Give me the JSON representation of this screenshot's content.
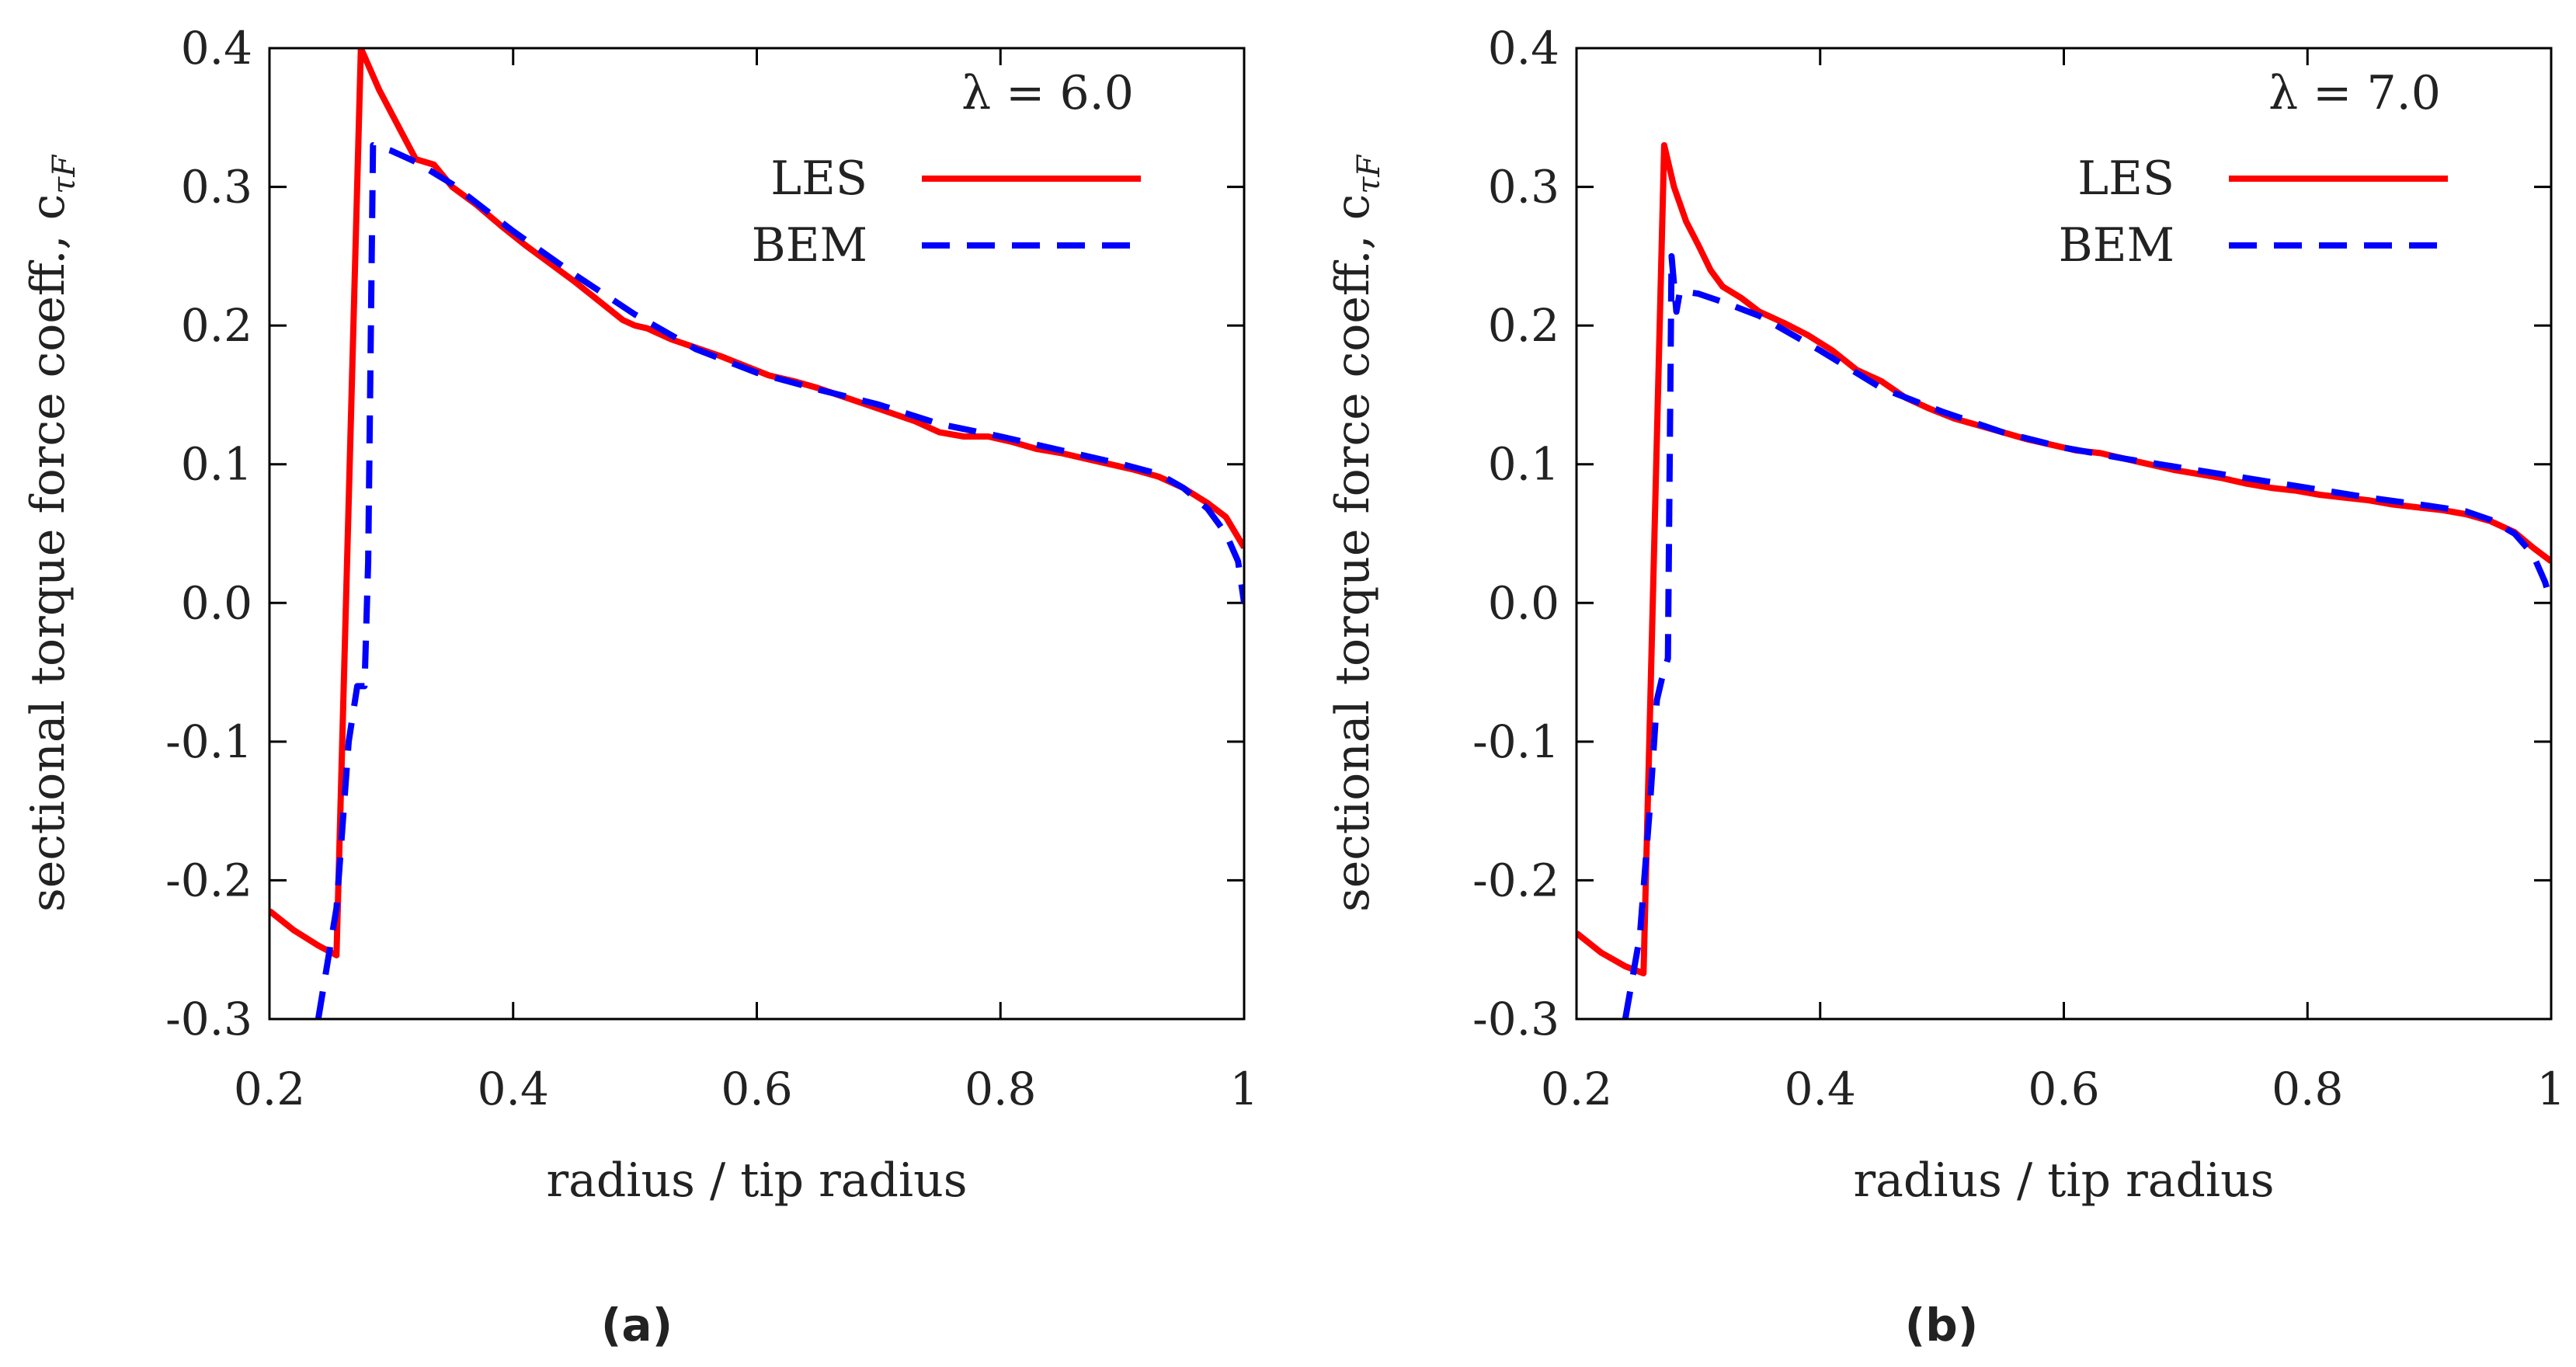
{
  "chart_data": [
    {
      "type": "line",
      "caption": "(a)",
      "annotation": "λ = 6.0",
      "xlabel": "radius / tip radius",
      "ylabel": "sectional torque force coeff., c",
      "ylabel_sub": "τF",
      "xlim": [
        0.2,
        1.0
      ],
      "ylim": [
        -0.3,
        0.4
      ],
      "xticks": [
        "0.2",
        "0.4",
        "0.6",
        "0.8",
        "1"
      ],
      "yticks": [
        "-0.3",
        "-0.2",
        "-0.1",
        "0.0",
        "0.1",
        "0.2",
        "0.3",
        "0.4"
      ],
      "legend_position": "top-right",
      "series": [
        {
          "name": "LES",
          "color": "#ff0000",
          "style": "solid",
          "x": [
            0.2,
            0.22,
            0.24,
            0.255,
            0.275,
            0.29,
            0.305,
            0.32,
            0.335,
            0.35,
            0.37,
            0.39,
            0.41,
            0.43,
            0.45,
            0.47,
            0.49,
            0.5,
            0.51,
            0.53,
            0.55,
            0.57,
            0.59,
            0.61,
            0.63,
            0.65,
            0.67,
            0.69,
            0.71,
            0.73,
            0.75,
            0.77,
            0.79,
            0.81,
            0.83,
            0.85,
            0.87,
            0.89,
            0.91,
            0.93,
            0.95,
            0.97,
            0.985,
            1.0
          ],
          "y": [
            -0.222,
            -0.236,
            -0.247,
            -0.254,
            0.4,
            0.37,
            0.345,
            0.32,
            0.316,
            0.3,
            0.287,
            0.272,
            0.258,
            0.245,
            0.232,
            0.218,
            0.204,
            0.2,
            0.198,
            0.19,
            0.184,
            0.178,
            0.171,
            0.164,
            0.16,
            0.155,
            0.149,
            0.143,
            0.137,
            0.131,
            0.123,
            0.12,
            0.12,
            0.116,
            0.111,
            0.108,
            0.104,
            0.1,
            0.096,
            0.091,
            0.083,
            0.072,
            0.062,
            0.04
          ]
        },
        {
          "name": "BEM",
          "color": "#0000ff",
          "style": "dashed",
          "x": [
            0.24,
            0.255,
            0.265,
            0.272,
            0.278,
            0.281,
            0.285,
            0.3,
            0.32,
            0.35,
            0.4,
            0.45,
            0.5,
            0.55,
            0.6,
            0.65,
            0.7,
            0.75,
            0.8,
            0.85,
            0.9,
            0.93,
            0.95,
            0.97,
            0.985,
            0.995,
            1.0
          ],
          "y": [
            -0.3,
            -0.22,
            -0.1,
            -0.06,
            -0.06,
            0.03,
            0.33,
            0.326,
            0.318,
            0.302,
            0.268,
            0.237,
            0.208,
            0.183,
            0.166,
            0.154,
            0.143,
            0.129,
            0.12,
            0.11,
            0.1,
            0.093,
            0.083,
            0.068,
            0.05,
            0.03,
            0.0
          ]
        }
      ]
    },
    {
      "type": "line",
      "caption": "(b)",
      "annotation": "λ = 7.0",
      "xlabel": "radius / tip radius",
      "ylabel": "sectional torque force coeff., c",
      "ylabel_sub": "τF",
      "xlim": [
        0.2,
        1.0
      ],
      "ylim": [
        -0.3,
        0.4
      ],
      "xticks": [
        "0.2",
        "0.4",
        "0.6",
        "0.8",
        "1"
      ],
      "yticks": [
        "-0.3",
        "-0.2",
        "-0.1",
        "0.0",
        "0.1",
        "0.2",
        "0.3",
        "0.4"
      ],
      "legend_position": "top-right",
      "series": [
        {
          "name": "LES",
          "color": "#ff0000",
          "style": "solid",
          "x": [
            0.2,
            0.22,
            0.24,
            0.255,
            0.272,
            0.28,
            0.29,
            0.3,
            0.31,
            0.32,
            0.335,
            0.35,
            0.37,
            0.39,
            0.41,
            0.43,
            0.45,
            0.47,
            0.49,
            0.51,
            0.53,
            0.55,
            0.57,
            0.59,
            0.61,
            0.63,
            0.65,
            0.67,
            0.69,
            0.71,
            0.73,
            0.75,
            0.77,
            0.79,
            0.81,
            0.83,
            0.85,
            0.87,
            0.89,
            0.91,
            0.93,
            0.95,
            0.97,
            0.985,
            1.0
          ],
          "y": [
            -0.238,
            -0.252,
            -0.262,
            -0.267,
            0.33,
            0.3,
            0.275,
            0.258,
            0.24,
            0.228,
            0.22,
            0.21,
            0.202,
            0.193,
            0.182,
            0.168,
            0.16,
            0.148,
            0.14,
            0.133,
            0.128,
            0.123,
            0.118,
            0.114,
            0.11,
            0.108,
            0.104,
            0.1,
            0.096,
            0.093,
            0.09,
            0.086,
            0.083,
            0.081,
            0.078,
            0.076,
            0.074,
            0.071,
            0.069,
            0.067,
            0.064,
            0.059,
            0.051,
            0.04,
            0.03
          ]
        },
        {
          "name": "BEM",
          "color": "#0000ff",
          "style": "dashed",
          "x": [
            0.24,
            0.252,
            0.26,
            0.266,
            0.27,
            0.275,
            0.278,
            0.282,
            0.285,
            0.3,
            0.32,
            0.35,
            0.4,
            0.45,
            0.5,
            0.55,
            0.6,
            0.65,
            0.7,
            0.75,
            0.8,
            0.85,
            0.9,
            0.93,
            0.95,
            0.97,
            0.985,
            0.995,
            1.0
          ],
          "y": [
            -0.3,
            -0.24,
            -0.15,
            -0.07,
            -0.055,
            -0.04,
            0.25,
            0.21,
            0.225,
            0.223,
            0.217,
            0.207,
            0.182,
            0.155,
            0.138,
            0.123,
            0.112,
            0.104,
            0.097,
            0.09,
            0.083,
            0.076,
            0.07,
            0.066,
            0.06,
            0.05,
            0.035,
            0.015,
            0.0
          ]
        }
      ]
    }
  ]
}
